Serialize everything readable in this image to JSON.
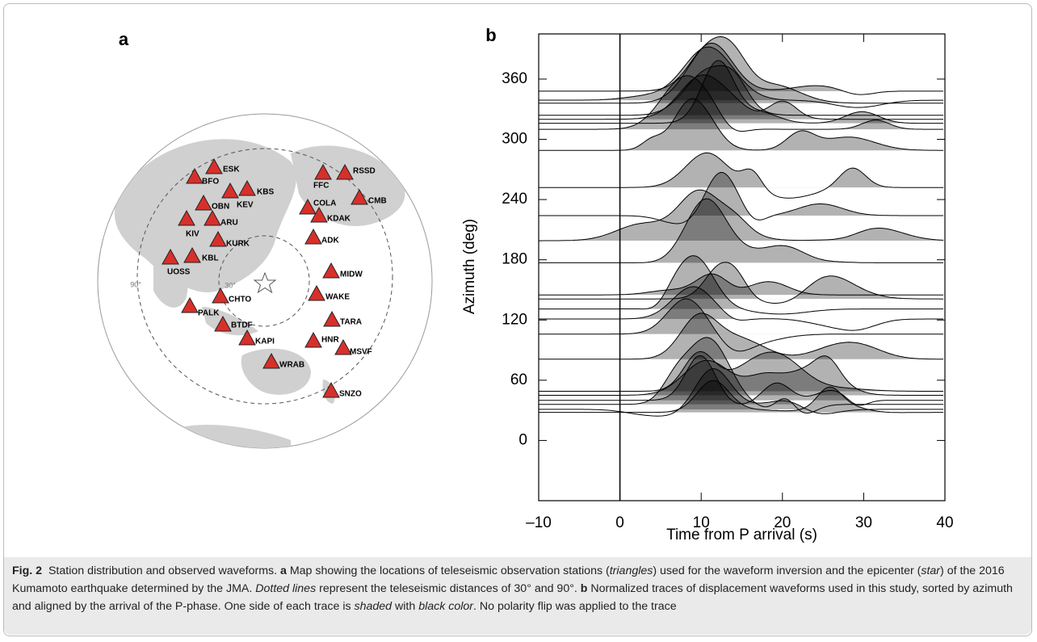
{
  "panel_a": {
    "label": "a",
    "stations": [
      "ESK",
      "BFO",
      "KBS",
      "KEV",
      "FFC",
      "RSSD",
      "CMB",
      "OBN",
      "COLA",
      "KDAK",
      "ARU",
      "KIV",
      "ADK",
      "KURK",
      "KBL",
      "UOSS",
      "MIDW",
      "WAKE",
      "CHTO",
      "PALK",
      "TARA",
      "BTDF",
      "HNR",
      "MSVF",
      "KAPI",
      "WRAB",
      "SNZO"
    ],
    "distance_labels": [
      "90°",
      "30°"
    ]
  },
  "chart_data": {
    "type": "waveform",
    "label": "b",
    "xlabel": "Time from P arrival (s)",
    "ylabel": "Azimuth (deg)",
    "xlim": [
      -10,
      40
    ],
    "ylim": [
      -60,
      405
    ],
    "xticks": [
      {
        "value": -10,
        "label": "–10"
      },
      0,
      10,
      20,
      30,
      40
    ],
    "yticks": [
      0,
      60,
      120,
      180,
      240,
      300,
      360
    ],
    "trace_azimuths": [
      348,
      339,
      336,
      324,
      320,
      316,
      310,
      289,
      252,
      224,
      199,
      177,
      145,
      141,
      131,
      121,
      106,
      81,
      49,
      45,
      40,
      36,
      31,
      28
    ],
    "color": "#000000"
  },
  "caption": {
    "label": "Fig. 2",
    "text": [
      "Station distribution and observed waveforms. ",
      "a",
      " Map showing the locations of teleseismic observation stations (",
      "triangles",
      ") used for the waveform inversion and the epicenter (",
      "star",
      ") of the 2016 Kumamoto earthquake determined by the JMA. ",
      "Dotted lines",
      " represent the teleseismic distances of 30° and 90°. ",
      "b",
      " Normalized traces of displacement waveforms used in this study, sorted by azimuth and aligned by the arrival of the P-phase. One side of each trace is ",
      "shaded",
      " with ",
      "black color",
      ". No polarity flip was applied to the trace"
    ]
  }
}
